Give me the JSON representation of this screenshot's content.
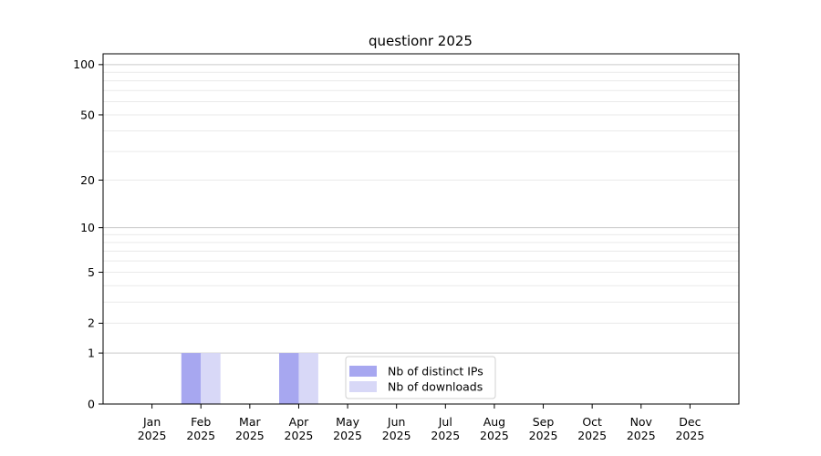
{
  "chart_data": {
    "type": "bar",
    "title": "questionr 2025",
    "categories": [
      "Jan 2025",
      "Feb 2025",
      "Mar 2025",
      "Apr 2025",
      "May 2025",
      "Jun 2025",
      "Jul 2025",
      "Aug 2025",
      "Sep 2025",
      "Oct 2025",
      "Nov 2025",
      "Dec 2025"
    ],
    "x_tick_labels": [
      {
        "line1": "Jan",
        "line2": "2025"
      },
      {
        "line1": "Feb",
        "line2": "2025"
      },
      {
        "line1": "Mar",
        "line2": "2025"
      },
      {
        "line1": "Apr",
        "line2": "2025"
      },
      {
        "line1": "May",
        "line2": "2025"
      },
      {
        "line1": "Jun",
        "line2": "2025"
      },
      {
        "line1": "Jul",
        "line2": "2025"
      },
      {
        "line1": "Aug",
        "line2": "2025"
      },
      {
        "line1": "Sep",
        "line2": "2025"
      },
      {
        "line1": "Oct",
        "line2": "2025"
      },
      {
        "line1": "Nov",
        "line2": "2025"
      },
      {
        "line1": "Dec",
        "line2": "2025"
      }
    ],
    "series": [
      {
        "name": "Nb of distinct IPs",
        "color": "#a7a7f0",
        "values": [
          0,
          1,
          0,
          1,
          0,
          0,
          0,
          0,
          0,
          0,
          0,
          0
        ]
      },
      {
        "name": "Nb of downloads",
        "color": "#d8d8f7",
        "values": [
          0,
          1,
          0,
          1,
          0,
          0,
          0,
          0,
          0,
          0,
          0,
          0
        ]
      }
    ],
    "y_ticks": [
      0,
      1,
      2,
      5,
      10,
      20,
      50,
      100
    ],
    "ylim": [
      0,
      116
    ],
    "yscale": "log1p",
    "xlabel": "",
    "ylabel": "",
    "grid": {
      "show": "horizontal",
      "major_values": [
        1,
        10,
        100
      ],
      "major_color": "#c9c9c9",
      "minor_color": "#eaeaea"
    },
    "legend": {
      "position": "inside-bottom-center",
      "border_color": "#d0d0d0",
      "background_color": "#ffffff",
      "entries": [
        "Nb of distinct IPs",
        "Nb of downloads"
      ]
    },
    "axis_color": "#000000",
    "text_color": "#000000",
    "background_color": "#ffffff"
  }
}
